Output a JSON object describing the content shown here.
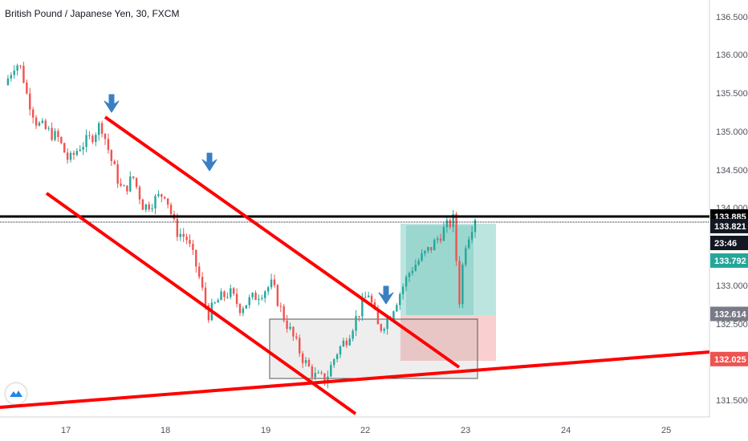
{
  "symbol_title": "British Pound / Japanese Yen, 30, FXCM",
  "colors": {
    "up": "#26a69a",
    "down": "#ef5350",
    "trendline": "#ff0000",
    "horizontal_level": "#000000",
    "arrow": "#3a7fc4",
    "profit_zone": "#a7dcd6",
    "loss_zone": "#f8c7c7"
  },
  "chart_data": {
    "type": "candlestick",
    "x_ticks": [
      "17",
      "18",
      "19",
      "22",
      "23",
      "24",
      "25"
    ],
    "y_ticks": [
      "136.500",
      "136.000",
      "135.500",
      "135.000",
      "134.500",
      "134.000",
      "133.000",
      "132.500",
      "131.500"
    ],
    "ylim": [
      131.4,
      136.65
    ],
    "grid": false,
    "close_path": [
      [
        0,
        135.6
      ],
      [
        1,
        135.9
      ],
      [
        1.6,
        135.8
      ],
      [
        2,
        135.5
      ],
      [
        3,
        135.1
      ],
      [
        4,
        135.0
      ],
      [
        5,
        134.9
      ],
      [
        6,
        134.6
      ],
      [
        7,
        134.8
      ],
      [
        8,
        134.9
      ],
      [
        9,
        135.1
      ],
      [
        10,
        134.6
      ],
      [
        11,
        134.2
      ],
      [
        12,
        134.4
      ],
      [
        13,
        134.0
      ],
      [
        14,
        134.1
      ],
      [
        15,
        134.2
      ],
      [
        16,
        133.7
      ],
      [
        17,
        133.6
      ],
      [
        18,
        133.2
      ],
      [
        19,
        132.6
      ],
      [
        20,
        132.8
      ],
      [
        21,
        132.9
      ],
      [
        22,
        132.7
      ],
      [
        23,
        132.8
      ],
      [
        24,
        132.9
      ],
      [
        25,
        133.0
      ],
      [
        26,
        132.6
      ],
      [
        27,
        132.3
      ],
      [
        28,
        132.0
      ],
      [
        29,
        131.8
      ],
      [
        30,
        131.75
      ],
      [
        31,
        132.1
      ],
      [
        32,
        132.3
      ],
      [
        33,
        132.6
      ],
      [
        34,
        132.9
      ],
      [
        35,
        132.4
      ],
      [
        36,
        132.6
      ],
      [
        37,
        132.9
      ],
      [
        38,
        133.2
      ],
      [
        39,
        133.35
      ],
      [
        40,
        133.5
      ],
      [
        41,
        133.7
      ],
      [
        42,
        133.85
      ],
      [
        42.5,
        132.75
      ],
      [
        43,
        133.5
      ],
      [
        44,
        133.885
      ]
    ],
    "tags": [
      {
        "label": "133.885",
        "color": "#000000",
        "price": 133.885
      },
      {
        "label": "133.821",
        "color": "#131722",
        "price": 133.76
      },
      {
        "label": "23:46",
        "color": "#131722",
        "price": 133.54
      },
      {
        "label": "133.792",
        "color": "#26a69a",
        "price": 133.31
      },
      {
        "label": "132.614",
        "color": "#787b86",
        "price": 132.614
      },
      {
        "label": "132.025",
        "color": "#ef5350",
        "price": 132.025
      }
    ]
  }
}
